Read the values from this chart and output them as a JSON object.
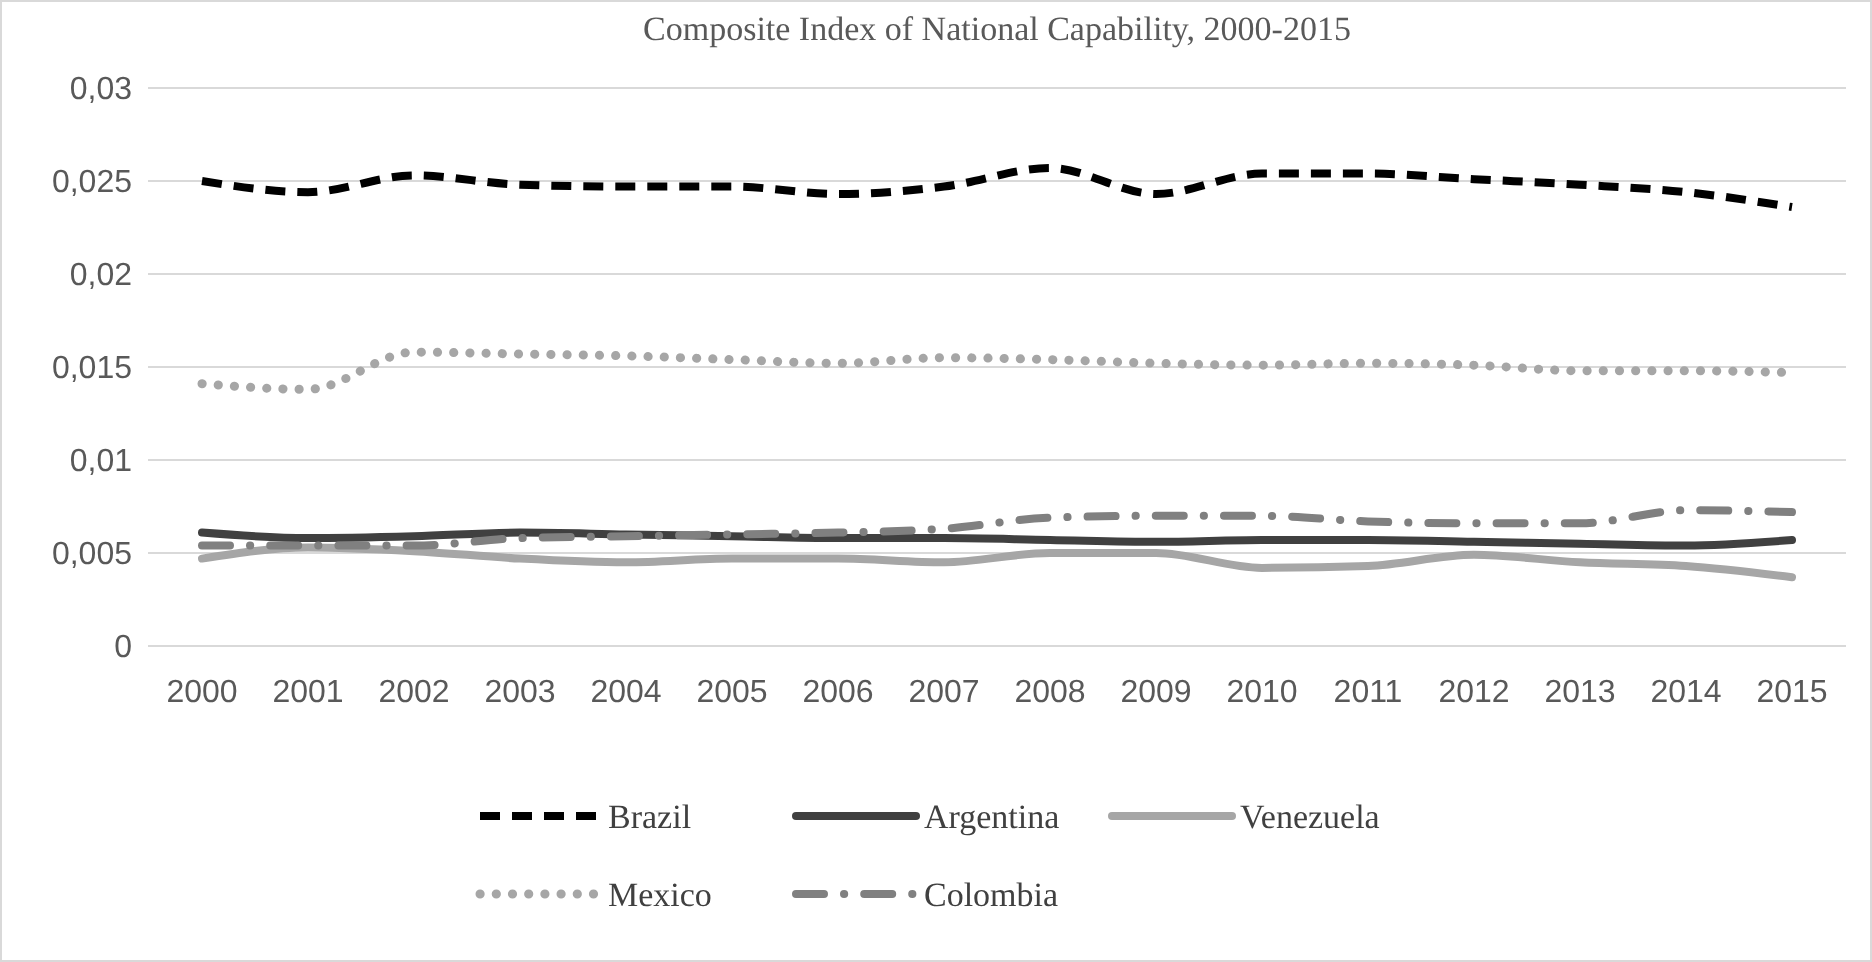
{
  "chart_data": {
    "type": "line",
    "title": "Composite Index of National Capability, 2000-2015",
    "categories": [
      "2000",
      "2001",
      "2002",
      "2003",
      "2004",
      "2005",
      "2006",
      "2007",
      "2008",
      "2009",
      "2010",
      "2011",
      "2012",
      "2013",
      "2014",
      "2015"
    ],
    "series": [
      {
        "name": "Brazil",
        "color": "#000000",
        "line_style": "dashed",
        "values": [
          0.025,
          0.0244,
          0.0253,
          0.0248,
          0.0247,
          0.0247,
          0.0243,
          0.0247,
          0.0257,
          0.0243,
          0.0254,
          0.0254,
          0.0251,
          0.0248,
          0.0244,
          0.0236
        ]
      },
      {
        "name": "Argentina",
        "color": "#404040",
        "line_style": "solid",
        "values": [
          0.0061,
          0.0058,
          0.0059,
          0.0061,
          0.006,
          0.0059,
          0.0058,
          0.0058,
          0.0057,
          0.0056,
          0.0057,
          0.0057,
          0.0056,
          0.0055,
          0.0054,
          0.0057
        ]
      },
      {
        "name": "Venezuela",
        "color": "#a6a6a6",
        "line_style": "solid",
        "values": [
          0.0047,
          0.0053,
          0.0051,
          0.0047,
          0.0045,
          0.0047,
          0.0047,
          0.0045,
          0.005,
          0.005,
          0.0042,
          0.0043,
          0.0049,
          0.0045,
          0.0043,
          0.0037
        ]
      },
      {
        "name": "Mexico",
        "color": "#a6a6a6",
        "line_style": "dotted",
        "values": [
          0.0141,
          0.0138,
          0.0158,
          0.0157,
          0.0156,
          0.0154,
          0.0152,
          0.0155,
          0.0154,
          0.0152,
          0.0151,
          0.0152,
          0.0151,
          0.0148,
          0.0148,
          0.0147
        ]
      },
      {
        "name": "Colombia",
        "color": "#808080",
        "line_style": "dashdot",
        "values": [
          0.0054,
          0.0054,
          0.0054,
          0.0058,
          0.0059,
          0.006,
          0.0061,
          0.0063,
          0.0069,
          0.007,
          0.007,
          0.0067,
          0.0066,
          0.0066,
          0.0073,
          0.0072
        ]
      }
    ],
    "ylim": [
      0,
      0.03
    ],
    "yticks": [
      {
        "value": 0,
        "label": "0"
      },
      {
        "value": 0.005,
        "label": "0,005"
      },
      {
        "value": 0.01,
        "label": "0,01"
      },
      {
        "value": 0.015,
        "label": "0,015"
      },
      {
        "value": 0.02,
        "label": "0,02"
      },
      {
        "value": 0.025,
        "label": "0,025"
      },
      {
        "value": 0.03,
        "label": "0,03"
      }
    ],
    "grid": "y",
    "legend": "bottom"
  }
}
